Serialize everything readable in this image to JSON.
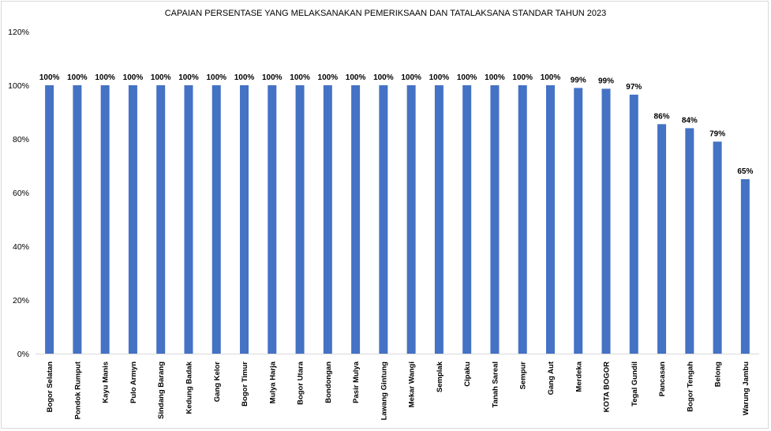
{
  "chart_data": {
    "type": "bar",
    "title": "CAPAIAN PERSENTASE YANG MELAKSANAKAN PEMERIKSAAN DAN TATALAKSANA STANDAR TAHUN 2023",
    "xlabel": "",
    "ylabel": "",
    "ylim": [
      0,
      120
    ],
    "yticks": [
      "0%",
      "20%",
      "40%",
      "60%",
      "80%",
      "100%",
      "120%"
    ],
    "grid": false,
    "legend": "none",
    "bar_color": "#4472C4",
    "categories": [
      "Bogor Selatan",
      "Pondok Rumput",
      "Kayu Manis",
      "Pulo Armyn",
      "Sindang Barang",
      "Kedung Badak",
      "Gang Kelor",
      "Bogor Timur",
      "Mulya Harja",
      "Bogor Utara",
      "Bondongan",
      "Pasir Mulya",
      "Lawang Gintung",
      "Mekar Wangi",
      "Semplak",
      "Cipaku",
      "Tanah Sareal",
      "Sempur",
      "Gang Aut",
      "Merdeka",
      "KOTA BOGOR",
      "Tegal Gundil",
      "Pancasan",
      "Bogor Tengah",
      "Belong",
      "Warung Jambu"
    ],
    "values": [
      100,
      100,
      100,
      100,
      100,
      100,
      100,
      100,
      100,
      100,
      100,
      100,
      100,
      100,
      100,
      100,
      100,
      100,
      100,
      99,
      98.7,
      96.5,
      85.5,
      84,
      79,
      65
    ],
    "data_labels": [
      "100%",
      "100%",
      "100%",
      "100%",
      "100%",
      "100%",
      "100%",
      "100%",
      "100%",
      "100%",
      "100%",
      "100%",
      "100%",
      "100%",
      "100%",
      "100%",
      "100%",
      "100%",
      "100%",
      "99%",
      "99%",
      "97%",
      "86%",
      "84%",
      "79%",
      "65%"
    ]
  }
}
